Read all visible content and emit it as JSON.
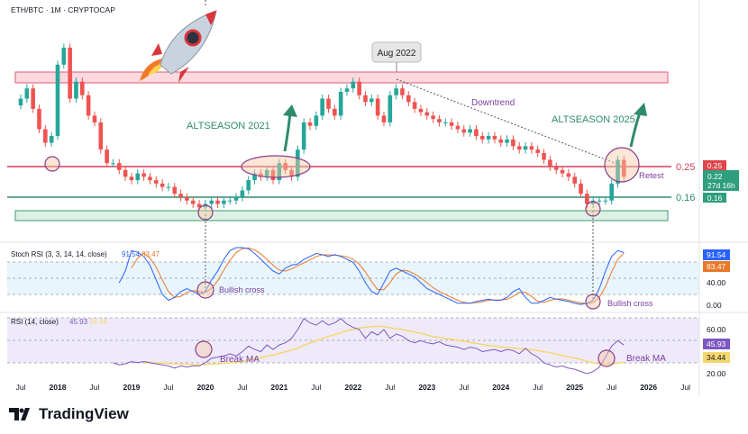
{
  "header": {
    "symbol": "ETH/BTC",
    "interval": "1M",
    "source": "CRYPTOCAP",
    "title": "ETH/BTC · 1M · CRYPTOCAP"
  },
  "colors": {
    "up": "#26a69a",
    "down": "#ef5350",
    "red_line": "#d2405a",
    "green_line": "#2e8b6e",
    "annotation": "#7b3fa0",
    "stoch_k": "#2962ff",
    "stoch_d": "#e8782a",
    "rsi": "#7e57c2",
    "rsi_ma": "#f5d76e"
  },
  "annotations": {
    "aug2022": "Aug 2022",
    "downtrend": "Downtrend",
    "altseason2021": "ALTSEASON 2021",
    "altseason2025": "ALTSEASON 2025",
    "retest": "Retest",
    "bullish_cross_1": "Bullish cross",
    "bullish_cross_2": "Bullish cross",
    "break_ma_1": "Break MA",
    "break_ma_2": "Break MA"
  },
  "price_axis": {
    "level_high": "0.25",
    "level_low": "0.16",
    "badge_high": "0.25",
    "badge_current": "0.22",
    "badge_countdown": "27d 16h",
    "badge_low": "0.16"
  },
  "stoch": {
    "label": "Stoch RSI (3, 3, 14, 14, close)",
    "k_value": "91.54",
    "d_value": "83.47",
    "ticks": [
      "40.00",
      "0.00"
    ]
  },
  "rsi": {
    "label": "RSI (14, close)",
    "value": "45.93",
    "ma_value": "34.44",
    "ticks": [
      "60.00",
      "20.00"
    ]
  },
  "time_axis": [
    "Jul",
    "2018",
    "Jul",
    "2019",
    "Jul",
    "2020",
    "Jul",
    "2021",
    "Jul",
    "2022",
    "Jul",
    "2023",
    "Jul",
    "2024",
    "Jul",
    "2025",
    "Jul",
    "2026",
    "Jul"
  ],
  "brand": "TradingView",
  "chart_data": {
    "type": "candlestick",
    "interval": "monthly",
    "start": "2017-07",
    "horizontal_levels": [
      0.25,
      0.16
    ],
    "closes": [
      0.45,
      0.48,
      0.42,
      0.36,
      0.32,
      0.34,
      0.55,
      0.6,
      0.45,
      0.5,
      0.46,
      0.4,
      0.38,
      0.3,
      0.26,
      0.26,
      0.24,
      0.22,
      0.21,
      0.23,
      0.22,
      0.21,
      0.2,
      0.19,
      0.19,
      0.17,
      0.16,
      0.15,
      0.14,
      0.13,
      0.14,
      0.15,
      0.14,
      0.15,
      0.15,
      0.16,
      0.18,
      0.21,
      0.23,
      0.22,
      0.24,
      0.21,
      0.26,
      0.24,
      0.22,
      0.3,
      0.38,
      0.37,
      0.4,
      0.45,
      0.42,
      0.4,
      0.47,
      0.48,
      0.5,
      0.46,
      0.44,
      0.45,
      0.4,
      0.38,
      0.46,
      0.48,
      0.46,
      0.44,
      0.42,
      0.41,
      0.4,
      0.39,
      0.38,
      0.38,
      0.37,
      0.36,
      0.35,
      0.36,
      0.34,
      0.33,
      0.34,
      0.33,
      0.32,
      0.33,
      0.31,
      0.3,
      0.31,
      0.3,
      0.29,
      0.27,
      0.25,
      0.24,
      0.23,
      0.22,
      0.2,
      0.17,
      0.14,
      0.15,
      0.15,
      0.15,
      0.2,
      0.27,
      0.22
    ],
    "stoch_start": "2018-11",
    "stoch_k": [
      40,
      60,
      95,
      92,
      85,
      70,
      45,
      20,
      10,
      15,
      25,
      30,
      25,
      20,
      25,
      45,
      60,
      80,
      95,
      100,
      100,
      98,
      90,
      80,
      70,
      60,
      55,
      65,
      70,
      72,
      80,
      85,
      90,
      88,
      85,
      88,
      85,
      80,
      75,
      60,
      40,
      25,
      20,
      40,
      60,
      65,
      60,
      55,
      50,
      40,
      30,
      25,
      20,
      15,
      10,
      5,
      5,
      5,
      8,
      10,
      12,
      10,
      10,
      15,
      25,
      30,
      15,
      5,
      5,
      10,
      15,
      12,
      10,
      8,
      5,
      3,
      5,
      10,
      30,
      60,
      85,
      95,
      91.54
    ],
    "rsi_start": "2018-10",
    "rsi_values": [
      30,
      28,
      29,
      31,
      30,
      31,
      30,
      29,
      28,
      27,
      25,
      27,
      26,
      27,
      27,
      30,
      34,
      35,
      36,
      38,
      36,
      40,
      45,
      42,
      40,
      46,
      42,
      46,
      48,
      52,
      60,
      70,
      66,
      64,
      68,
      64,
      66,
      70,
      65,
      62,
      60,
      52,
      58,
      55,
      60,
      52,
      56,
      54,
      50,
      48,
      50,
      48,
      47,
      49,
      46,
      45,
      44,
      42,
      44,
      43,
      40,
      41,
      42,
      40,
      42,
      41,
      38,
      43,
      38,
      35,
      30,
      28,
      26,
      27,
      25,
      24,
      22,
      20,
      22,
      26,
      35,
      45,
      50,
      45.93
    ]
  }
}
